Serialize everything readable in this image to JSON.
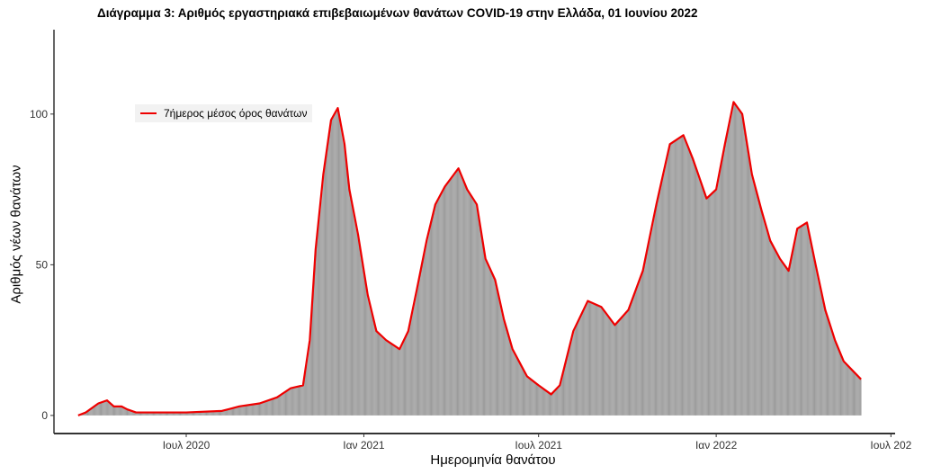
{
  "chart_data": {
    "type": "bar",
    "title": "Διάγραμμα 3: Αριθμός εργαστηριακά επιβεβαιωμένων θανάτων COVID-19 στην Ελλάδα, 01 Ιουνίου 2022",
    "xlabel": "Ημερομηνία θανάτου",
    "ylabel": "Αριθμός νέων θανάτων",
    "xlim": [
      "2020-02-15",
      "2022-07-10"
    ],
    "ylim": [
      -6,
      128
    ],
    "y_ticks": [
      0,
      50,
      100
    ],
    "x_ticks": [
      {
        "date": "2020-07-01",
        "label": "Ιουλ 2020"
      },
      {
        "date": "2021-01-01",
        "label": "Ιαν 2021"
      },
      {
        "date": "2021-07-01",
        "label": "Ιουλ 2021"
      },
      {
        "date": "2022-01-01",
        "label": "Ιαν 2022"
      },
      {
        "date": "2022-07-01",
        "label": "Ιουλ 202"
      }
    ],
    "grid": false,
    "legend_position": "top-left",
    "bar_color": "#999999",
    "line_color": "#ee0000",
    "series": [
      {
        "name": "7ήμερος μέσος όρος θανάτων",
        "type": "line",
        "points": [
          [
            "2020-03-11",
            0
          ],
          [
            "2020-03-19",
            1
          ],
          [
            "2020-04-01",
            4
          ],
          [
            "2020-04-10",
            5
          ],
          [
            "2020-04-17",
            3
          ],
          [
            "2020-04-25",
            3
          ],
          [
            "2020-05-01",
            2
          ],
          [
            "2020-05-10",
            1
          ],
          [
            "2020-07-01",
            1
          ],
          [
            "2020-08-07",
            1.5
          ],
          [
            "2020-08-25",
            3
          ],
          [
            "2020-09-15",
            4
          ],
          [
            "2020-10-03",
            6
          ],
          [
            "2020-10-17",
            9
          ],
          [
            "2020-10-30",
            10
          ],
          [
            "2020-11-06",
            25
          ],
          [
            "2020-11-12",
            55
          ],
          [
            "2020-11-20",
            80
          ],
          [
            "2020-11-28",
            98
          ],
          [
            "2020-12-05",
            102
          ],
          [
            "2020-12-12",
            90
          ],
          [
            "2020-12-17",
            75
          ],
          [
            "2020-12-26",
            60
          ],
          [
            "2021-01-05",
            40
          ],
          [
            "2021-01-14",
            28
          ],
          [
            "2021-01-24",
            25
          ],
          [
            "2021-02-07",
            22
          ],
          [
            "2021-02-16",
            28
          ],
          [
            "2021-02-25",
            42
          ],
          [
            "2021-03-07",
            58
          ],
          [
            "2021-03-16",
            70
          ],
          [
            "2021-03-26",
            76
          ],
          [
            "2021-04-09",
            82
          ],
          [
            "2021-04-18",
            75
          ],
          [
            "2021-04-28",
            70
          ],
          [
            "2021-05-07",
            52
          ],
          [
            "2021-05-17",
            45
          ],
          [
            "2021-05-26",
            32
          ],
          [
            "2021-06-04",
            22
          ],
          [
            "2021-06-19",
            13
          ],
          [
            "2021-07-01",
            10
          ],
          [
            "2021-07-14",
            7
          ],
          [
            "2021-07-23",
            10
          ],
          [
            "2021-08-06",
            28
          ],
          [
            "2021-08-21",
            38
          ],
          [
            "2021-09-04",
            36
          ],
          [
            "2021-09-18",
            30
          ],
          [
            "2021-10-02",
            35
          ],
          [
            "2021-10-17",
            48
          ],
          [
            "2021-10-31",
            70
          ],
          [
            "2021-11-14",
            90
          ],
          [
            "2021-11-28",
            93
          ],
          [
            "2021-12-08",
            85
          ],
          [
            "2021-12-22",
            72
          ],
          [
            "2022-01-01",
            75
          ],
          [
            "2022-01-10",
            90
          ],
          [
            "2022-01-19",
            104
          ],
          [
            "2022-01-28",
            100
          ],
          [
            "2022-02-07",
            80
          ],
          [
            "2022-02-17",
            68
          ],
          [
            "2022-02-26",
            58
          ],
          [
            "2022-03-08",
            52
          ],
          [
            "2022-03-17",
            48
          ],
          [
            "2022-03-26",
            62
          ],
          [
            "2022-04-05",
            64
          ],
          [
            "2022-04-14",
            50
          ],
          [
            "2022-04-24",
            35
          ],
          [
            "2022-05-04",
            25
          ],
          [
            "2022-05-13",
            18
          ],
          [
            "2022-05-31",
            12
          ]
        ]
      }
    ]
  }
}
